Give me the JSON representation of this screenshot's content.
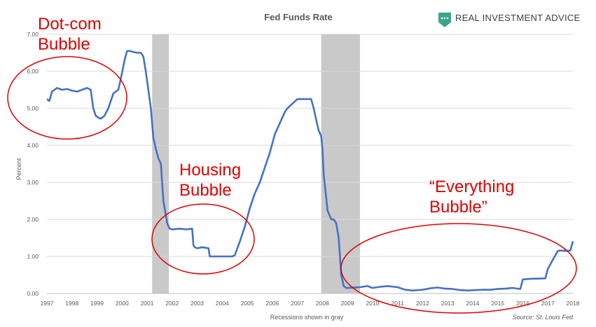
{
  "chart_data": {
    "type": "line",
    "title": "Fed Funds Rate",
    "ylabel": "Percent",
    "xlabel": "Recessions shown in gray",
    "source": "Source: St. Louis Fed",
    "brand": "REAL INVESTMENT ADVICE",
    "xlim": [
      1997,
      2018
    ],
    "ylim": [
      0,
      7
    ],
    "x_ticks": [
      "1997",
      "1998",
      "1999",
      "2000",
      "2001",
      "2002",
      "2003",
      "2004",
      "2005",
      "2006",
      "2007",
      "2008",
      "2009",
      "2010",
      "2011",
      "2012",
      "2013",
      "2014",
      "2015",
      "2016",
      "2017",
      "2018"
    ],
    "y_ticks": [
      "0.00",
      "1.00",
      "2.00",
      "3.00",
      "4.00",
      "5.00",
      "6.00",
      "7.00"
    ],
    "grid": "horizontal",
    "colors": {
      "line": "#4472c4",
      "recession": "#c9c9c9",
      "annotation": "#e00000",
      "grid": "#d9d9d9"
    },
    "recessions": [
      [
        2001.2,
        2001.87
      ],
      [
        2007.95,
        2009.5
      ]
    ],
    "series": [
      {
        "name": "",
        "x": [
          1997.0,
          1997.1,
          1997.2,
          1997.3,
          1997.4,
          1997.6,
          1997.8,
          1998.0,
          1998.2,
          1998.4,
          1998.6,
          1998.75,
          1998.85,
          1998.95,
          1999.05,
          1999.15,
          1999.3,
          1999.45,
          1999.55,
          1999.65,
          1999.75,
          1999.85,
          1999.95,
          2000.1,
          2000.2,
          2000.3,
          2000.45,
          2000.6,
          2000.75,
          2000.85,
          2000.95,
          2001.05,
          2001.15,
          2001.25,
          2001.35,
          2001.45,
          2001.55,
          2001.65,
          2001.75,
          2001.8,
          2001.9,
          2002.0,
          2002.3,
          2002.55,
          2002.8,
          2002.85,
          2002.9,
          2003.0,
          2003.2,
          2003.45,
          2003.5,
          2003.7,
          2004.0,
          2004.4,
          2004.5,
          2004.7,
          2004.9,
          2005.1,
          2005.3,
          2005.5,
          2005.7,
          2005.9,
          2006.1,
          2006.3,
          2006.5,
          2006.6,
          2007.0,
          2007.55,
          2007.65,
          2007.75,
          2007.85,
          2007.95,
          2008.0,
          2008.05,
          2008.15,
          2008.2,
          2008.35,
          2008.45,
          2008.55,
          2008.65,
          2008.75,
          2008.85,
          2008.95,
          2009.0,
          2009.5,
          2009.8,
          2010.0,
          2010.3,
          2010.6,
          2011.0,
          2011.3,
          2011.6,
          2012.0,
          2012.3,
          2012.6,
          2012.9,
          2013.2,
          2013.5,
          2013.8,
          2014.1,
          2014.4,
          2014.7,
          2015.0,
          2015.3,
          2015.6,
          2015.9,
          2016.0,
          2016.2,
          2016.4,
          2016.6,
          2016.9,
          2017.0,
          2017.2,
          2017.4,
          2017.5,
          2017.7,
          2017.9,
          2018.0
        ],
        "y": [
          5.25,
          5.2,
          5.45,
          5.5,
          5.55,
          5.5,
          5.52,
          5.48,
          5.45,
          5.5,
          5.55,
          5.5,
          5.0,
          4.8,
          4.75,
          4.72,
          4.8,
          5.0,
          5.2,
          5.4,
          5.45,
          5.5,
          5.8,
          6.3,
          6.55,
          6.55,
          6.52,
          6.5,
          6.5,
          6.4,
          5.98,
          5.5,
          5.0,
          4.2,
          3.9,
          3.65,
          3.5,
          2.5,
          2.1,
          1.9,
          1.75,
          1.73,
          1.75,
          1.73,
          1.75,
          1.3,
          1.25,
          1.22,
          1.25,
          1.22,
          1.0,
          1.0,
          1.0,
          1.0,
          1.03,
          1.4,
          1.8,
          2.3,
          2.7,
          3.0,
          3.4,
          3.8,
          4.3,
          4.6,
          4.9,
          5.0,
          5.25,
          5.25,
          5.0,
          4.7,
          4.4,
          4.25,
          3.9,
          3.2,
          2.6,
          2.25,
          2.0,
          2.0,
          1.9,
          1.5,
          0.5,
          0.2,
          0.15,
          0.15,
          0.17,
          0.2,
          0.15,
          0.18,
          0.2,
          0.17,
          0.1,
          0.08,
          0.1,
          0.14,
          0.16,
          0.13,
          0.12,
          0.09,
          0.08,
          0.09,
          0.1,
          0.1,
          0.12,
          0.13,
          0.15,
          0.12,
          0.38,
          0.39,
          0.4,
          0.4,
          0.41,
          0.66,
          0.91,
          1.15,
          1.16,
          1.15,
          1.16,
          1.41
        ]
      }
    ],
    "annotations": [
      {
        "lines": [
          "Dot-com",
          "Bubble"
        ]
      },
      {
        "lines": [
          "Housing",
          "Bubble"
        ]
      },
      {
        "lines": [
          "“Everything",
          "Bubble”"
        ]
      }
    ]
  }
}
